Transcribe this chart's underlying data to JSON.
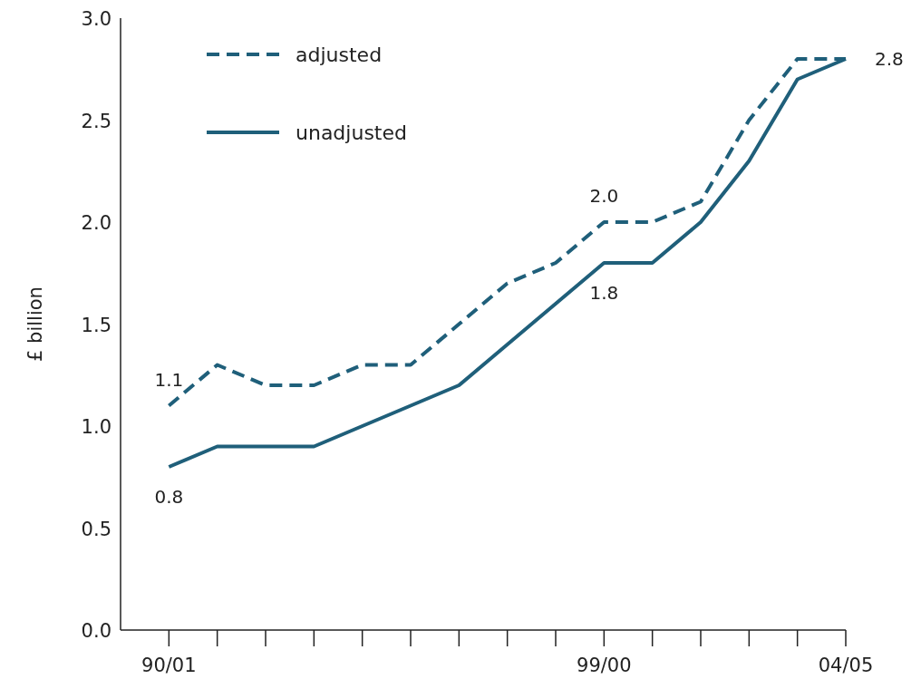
{
  "chart_data": {
    "type": "line",
    "ylabel": "£ billion",
    "categories": [
      "90/01",
      null,
      null,
      null,
      null,
      null,
      null,
      null,
      null,
      "99/00",
      null,
      null,
      null,
      null,
      "04/05"
    ],
    "series": [
      {
        "name": "adjusted",
        "color": "#1f5f7a",
        "line_style": "dashed",
        "values": [
          1.1,
          1.3,
          1.2,
          1.2,
          1.3,
          1.3,
          1.5,
          1.7,
          1.8,
          2.0,
          2.0,
          2.1,
          2.5,
          2.8,
          2.8
        ],
        "value_labels": [
          "1.1",
          null,
          null,
          null,
          null,
          null,
          null,
          null,
          null,
          "2.0",
          null,
          null,
          null,
          null,
          "2.8"
        ]
      },
      {
        "name": "unadjusted",
        "color": "#1f5f7a",
        "line_style": "solid",
        "values": [
          0.8,
          0.9,
          0.9,
          0.9,
          1.0,
          1.1,
          1.2,
          1.4,
          1.6,
          1.8,
          1.8,
          2.0,
          2.3,
          2.7,
          2.8
        ],
        "value_labels": [
          "0.8",
          null,
          null,
          null,
          null,
          null,
          null,
          null,
          null,
          "1.8",
          null,
          null,
          null,
          null,
          null
        ]
      }
    ],
    "ylim": [
      0,
      3
    ],
    "yticks": [
      {
        "value": 0,
        "label": "0.0"
      },
      {
        "value": 0.5,
        "label": "0.5"
      },
      {
        "value": 1,
        "label": "1.0"
      },
      {
        "value": 1.5,
        "label": "1.5"
      },
      {
        "value": 2,
        "label": "2.0"
      },
      {
        "value": 2.5,
        "label": "2.5"
      },
      {
        "value": 3,
        "label": "3.0"
      }
    ],
    "legend": "top left",
    "grid": false,
    "marker": "none"
  }
}
